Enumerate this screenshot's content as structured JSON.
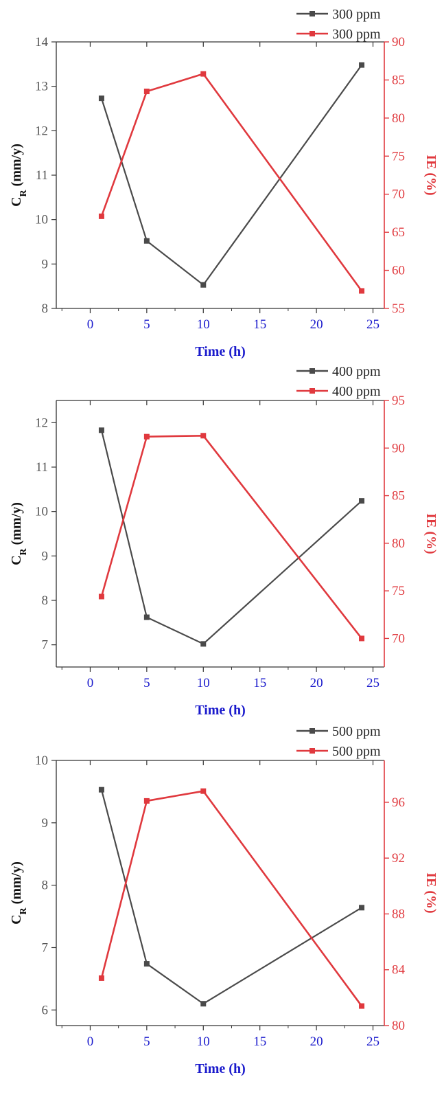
{
  "colors": {
    "cr": "#4a4a4a",
    "ie": "#e0393e",
    "xaxis": "#1a1acc"
  },
  "chart_data": [
    {
      "type": "line",
      "xlabel": "Time (h)",
      "ylabel_main": "C",
      "ylabel_sub": "R",
      "ylabel_unit": " (mm/y)",
      "ylabel_right": "IE (%)",
      "xlim": [
        -3,
        26
      ],
      "xticks": [
        0,
        5,
        10,
        15,
        20,
        25
      ],
      "x": [
        1,
        5,
        10,
        24
      ],
      "ylim_left": [
        8,
        14
      ],
      "yticks_left": [
        8,
        9,
        10,
        11,
        12,
        13,
        14
      ],
      "ylim_right": [
        55,
        90
      ],
      "yticks_right": [
        55,
        60,
        65,
        70,
        75,
        80,
        85,
        90
      ],
      "series": [
        {
          "name": "300 ppm",
          "axis": "left",
          "values": [
            12.73,
            9.52,
            8.53,
            13.48
          ]
        },
        {
          "name": "300 ppm",
          "axis": "right",
          "values": [
            67.1,
            83.5,
            85.8,
            57.3
          ]
        }
      ],
      "legend_position": "top-right"
    },
    {
      "type": "line",
      "xlabel": "Time (h)",
      "ylabel_main": "C",
      "ylabel_sub": "R",
      "ylabel_unit": " (mm/y)",
      "ylabel_right": "IE (%)",
      "xlim": [
        -3,
        26
      ],
      "xticks": [
        0,
        5,
        10,
        15,
        20,
        25
      ],
      "x": [
        1,
        5,
        10,
        24
      ],
      "ylim_left": [
        6.5,
        12.5
      ],
      "yticks_left": [
        7,
        8,
        9,
        10,
        11,
        12
      ],
      "ylim_right": [
        67,
        95
      ],
      "yticks_right": [
        70,
        75,
        80,
        85,
        90,
        95
      ],
      "series": [
        {
          "name": "400 ppm",
          "axis": "left",
          "values": [
            11.83,
            7.62,
            7.02,
            10.24
          ]
        },
        {
          "name": "400 ppm",
          "axis": "right",
          "values": [
            74.4,
            91.2,
            91.3,
            70.0
          ]
        }
      ],
      "legend_position": "top-right"
    },
    {
      "type": "line",
      "xlabel": "Time (h)",
      "ylabel_main": "C",
      "ylabel_sub": "R",
      "ylabel_unit": " (mm/y)",
      "ylabel_right": "IE (%)",
      "xlim": [
        -3,
        26
      ],
      "xticks": [
        0,
        5,
        10,
        15,
        20,
        25
      ],
      "x": [
        1,
        5,
        10,
        24
      ],
      "ylim_left": [
        5.75,
        10
      ],
      "yticks_left": [
        6,
        7,
        8,
        9,
        10
      ],
      "ylim_right": [
        80,
        99
      ],
      "yticks_right": [
        80,
        84,
        88,
        92,
        96
      ],
      "series": [
        {
          "name": "500 ppm",
          "axis": "left",
          "values": [
            9.53,
            6.74,
            6.1,
            7.64
          ]
        },
        {
          "name": "500 ppm",
          "axis": "right",
          "values": [
            83.4,
            96.1,
            96.8,
            81.4
          ]
        }
      ],
      "legend_position": "top-right"
    }
  ]
}
